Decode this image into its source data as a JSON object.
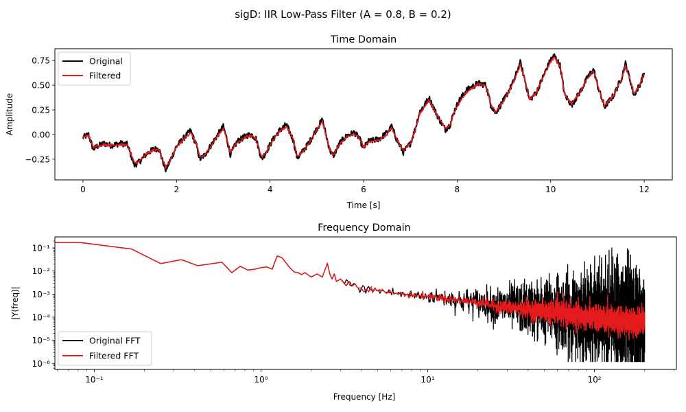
{
  "figure": {
    "suptitle": "sigD: IIR Low-Pass Filter (A = 0.8, B = 0.2)"
  },
  "chart_data": [
    {
      "type": "line",
      "title": "Time Domain",
      "xlabel": "Time [s]",
      "ylabel": "Amplitude",
      "xlim": [
        -0.6,
        12.6
      ],
      "ylim": [
        -0.46,
        0.87
      ],
      "xticks": [
        0,
        2,
        4,
        6,
        8,
        10,
        12
      ],
      "xtick_labels": [
        "0",
        "2",
        "4",
        "6",
        "8",
        "10",
        "12"
      ],
      "yticks": [
        -0.25,
        0.0,
        0.25,
        0.5,
        0.75
      ],
      "ytick_labels": [
        "−0.25",
        "0.00",
        "0.25",
        "0.50",
        "0.75"
      ],
      "legend_position": "upper-left",
      "series": [
        {
          "name": "Original",
          "color": "#000000",
          "envelope": 0.03,
          "x": [
            0,
            0.12,
            0.22,
            0.3,
            0.45,
            0.6,
            0.8,
            0.95,
            1.02,
            1.1,
            1.2,
            1.35,
            1.5,
            1.62,
            1.7,
            1.77,
            1.85,
            2.0,
            2.15,
            2.3,
            2.42,
            2.5,
            2.6,
            2.75,
            2.9,
            3.0,
            3.08,
            3.15,
            3.3,
            3.5,
            3.6,
            3.7,
            3.82,
            3.9,
            4.05,
            4.2,
            4.35,
            4.5,
            4.58,
            4.7,
            4.85,
            5.0,
            5.12,
            5.2,
            5.28,
            5.35,
            5.5,
            5.65,
            5.8,
            5.9,
            6.0,
            6.1,
            6.2,
            6.35,
            6.5,
            6.6,
            6.7,
            6.85,
            7.0,
            7.1,
            7.2,
            7.4,
            7.6,
            7.75,
            7.85,
            7.95,
            8.05,
            8.2,
            8.45,
            8.62,
            8.72,
            8.82,
            9.0,
            9.2,
            9.35,
            9.45,
            9.55,
            9.7,
            9.85,
            10.0,
            10.08,
            10.2,
            10.3,
            10.45,
            10.65,
            10.8,
            10.92,
            11.0,
            11.15,
            11.35,
            11.52,
            11.6,
            11.7,
            11.78,
            11.9,
            12.0
          ],
          "y": [
            -0.03,
            0.0,
            -0.15,
            -0.12,
            -0.09,
            -0.11,
            -0.09,
            -0.1,
            -0.2,
            -0.31,
            -0.28,
            -0.2,
            -0.15,
            -0.14,
            -0.26,
            -0.36,
            -0.28,
            -0.12,
            -0.04,
            0.04,
            -0.1,
            -0.25,
            -0.21,
            -0.1,
            0.01,
            0.08,
            -0.05,
            -0.2,
            -0.07,
            -0.01,
            -0.0,
            -0.04,
            -0.25,
            -0.19,
            -0.06,
            0.04,
            0.1,
            -0.06,
            -0.24,
            -0.17,
            -0.07,
            0.06,
            0.15,
            -0.01,
            -0.16,
            -0.22,
            -0.08,
            -0.01,
            0.02,
            -0.03,
            -0.14,
            -0.07,
            -0.06,
            -0.04,
            0.02,
            0.08,
            -0.04,
            -0.18,
            -0.09,
            0.05,
            0.23,
            0.37,
            0.17,
            0.05,
            0.1,
            0.25,
            0.35,
            0.45,
            0.52,
            0.5,
            0.3,
            0.22,
            0.35,
            0.53,
            0.73,
            0.55,
            0.35,
            0.43,
            0.6,
            0.76,
            0.8,
            0.7,
            0.4,
            0.3,
            0.45,
            0.59,
            0.66,
            0.5,
            0.28,
            0.4,
            0.58,
            0.72,
            0.55,
            0.4,
            0.5,
            0.62
          ],
          "line_width": 2.2
        },
        {
          "name": "Filtered",
          "color": "#e41a1c",
          "envelope": 0.012,
          "x": [
            0,
            0.12,
            0.22,
            0.3,
            0.45,
            0.6,
            0.8,
            0.95,
            1.02,
            1.1,
            1.2,
            1.35,
            1.5,
            1.62,
            1.7,
            1.77,
            1.85,
            2.0,
            2.15,
            2.3,
            2.42,
            2.5,
            2.6,
            2.75,
            2.9,
            3.0,
            3.08,
            3.15,
            3.3,
            3.5,
            3.6,
            3.7,
            3.82,
            3.9,
            4.05,
            4.2,
            4.35,
            4.5,
            4.58,
            4.7,
            4.85,
            5.0,
            5.12,
            5.2,
            5.28,
            5.35,
            5.5,
            5.65,
            5.8,
            5.9,
            6.0,
            6.1,
            6.2,
            6.35,
            6.5,
            6.6,
            6.7,
            6.85,
            7.0,
            7.1,
            7.2,
            7.4,
            7.6,
            7.75,
            7.85,
            7.95,
            8.05,
            8.2,
            8.45,
            8.62,
            8.72,
            8.82,
            9.0,
            9.2,
            9.35,
            9.45,
            9.55,
            9.7,
            9.85,
            10.0,
            10.08,
            10.2,
            10.3,
            10.45,
            10.65,
            10.8,
            10.92,
            11.0,
            11.15,
            11.35,
            11.52,
            11.6,
            11.7,
            11.78,
            11.9,
            12.0
          ],
          "y": [
            -0.03,
            -0.01,
            -0.13,
            -0.12,
            -0.1,
            -0.11,
            -0.1,
            -0.11,
            -0.19,
            -0.29,
            -0.27,
            -0.2,
            -0.16,
            -0.15,
            -0.25,
            -0.34,
            -0.28,
            -0.13,
            -0.05,
            0.02,
            -0.09,
            -0.23,
            -0.21,
            -0.11,
            0.0,
            0.06,
            -0.05,
            -0.18,
            -0.08,
            -0.02,
            -0.01,
            -0.04,
            -0.23,
            -0.19,
            -0.07,
            0.03,
            0.08,
            -0.05,
            -0.22,
            -0.17,
            -0.08,
            0.05,
            0.13,
            -0.01,
            -0.15,
            -0.21,
            -0.09,
            -0.02,
            0.01,
            -0.03,
            -0.13,
            -0.08,
            -0.07,
            -0.05,
            0.0,
            0.07,
            -0.04,
            -0.16,
            -0.09,
            0.04,
            0.21,
            0.35,
            0.17,
            0.06,
            0.1,
            0.24,
            0.33,
            0.43,
            0.51,
            0.49,
            0.31,
            0.23,
            0.34,
            0.52,
            0.71,
            0.55,
            0.36,
            0.43,
            0.59,
            0.74,
            0.78,
            0.69,
            0.41,
            0.31,
            0.45,
            0.58,
            0.64,
            0.5,
            0.29,
            0.4,
            0.57,
            0.7,
            0.55,
            0.41,
            0.5,
            0.61
          ],
          "line_width": 1.6
        }
      ]
    },
    {
      "type": "line",
      "title": "Frequency Domain",
      "xlabel": "Frequency [Hz]",
      "ylabel": "|Y(freq)|",
      "xscale": "log",
      "yscale": "log",
      "xlim": [
        0.058,
        310
      ],
      "ylim": [
        5.5e-07,
        0.3
      ],
      "xticks": [
        0.1,
        1,
        10,
        100
      ],
      "xtick_labels": [
        "10⁻¹",
        "10⁰",
        "10¹",
        "10²"
      ],
      "yticks": [
        1e-06,
        1e-05,
        0.0001,
        0.001,
        0.01,
        0.1
      ],
      "ytick_labels": [
        "10⁻⁶",
        "10⁻⁵",
        "10⁻⁴",
        "10⁻³",
        "10⁻²",
        "10⁻¹"
      ],
      "legend_position": "lower-left",
      "series": [
        {
          "name": "Original FFT",
          "color": "#000000",
          "x": [
            0.05,
            0.083,
            0.167,
            0.25,
            0.333,
            0.417,
            0.583,
            0.667,
            0.75,
            0.833,
            0.917,
            1.0,
            1.083,
            1.167,
            1.25,
            1.333,
            1.417,
            1.5,
            1.583,
            1.667,
            1.75,
            1.833,
            2.0,
            2.167,
            2.333,
            2.5,
            2.583,
            2.667,
            2.75,
            2.833,
            3.0,
            3.167,
            3.333,
            3.5,
            3.667,
            3.833,
            4.0,
            4.5,
            5.0,
            5.5,
            6.0,
            6.5,
            7.0,
            7.5,
            8.0,
            9.0,
            10.0,
            11.0,
            12.0,
            13.0,
            14.0,
            15.0,
            17.0,
            20.0,
            23.0,
            23.5,
            25.0,
            28.0,
            32.0,
            36.0,
            40.0,
            45.0,
            50.0,
            55.0,
            59.9,
            60.0,
            60.1,
            65.0,
            70.0,
            80.0,
            90.0,
            100.0,
            110.0,
            119.9,
            120.0,
            120.1,
            130.0,
            140.0,
            150.0,
            160.0,
            170.0,
            180.0,
            190.0,
            200.0
          ],
          "y": [
            0.17,
            0.17,
            0.09,
            0.021,
            0.031,
            0.017,
            0.024,
            0.0085,
            0.016,
            0.011,
            0.012,
            0.014,
            0.015,
            0.012,
            0.045,
            0.038,
            0.022,
            0.013,
            0.009,
            0.0085,
            0.007,
            0.0085,
            0.0055,
            0.0075,
            0.0055,
            0.022,
            0.0075,
            0.0045,
            0.0075,
            0.0035,
            0.0045,
            0.0028,
            0.0035,
            0.0022,
            0.0028,
            0.0018,
            0.0018,
            0.0016,
            0.0014,
            0.0013,
            0.0012,
            0.0011,
            0.001,
            0.00095,
            0.0009,
            0.00085,
            0.0008,
            0.00075,
            0.0007,
            0.00065,
            0.0006,
            0.00055,
            0.0005,
            0.00045,
            0.0004,
            0.00035,
            0.00033,
            0.0003,
            0.00028,
            0.00026,
            0.00024,
            0.00022,
            0.0002,
            0.00019,
            0.00018,
            0.008,
            0.00018,
            0.00016,
            0.00015,
            0.00013,
            0.00012,
            0.00011,
            0.0001,
            0.0001,
            0.012,
            0.0001,
            9e-05,
            8.5e-05,
            8e-05,
            7.5e-05,
            7e-05,
            6.5e-05,
            6e-05,
            6e-05
          ],
          "noise_sigma": [
            0,
            0,
            0,
            0,
            0,
            0,
            0,
            0,
            0,
            0,
            0,
            0,
            0,
            0,
            0,
            0,
            0,
            0,
            0,
            0,
            0,
            0,
            0,
            0,
            0,
            0,
            0,
            0,
            0,
            0,
            0.06,
            0.08,
            0.1,
            0.1,
            0.12,
            0.12,
            0.12,
            0.12,
            0.12,
            0.12,
            0.12,
            0.12,
            0.12,
            0.12,
            0.12,
            0.14,
            0.16,
            0.18,
            0.2,
            0.22,
            0.25,
            0.28,
            0.3,
            0.34,
            0.38,
            0.4,
            0.45,
            0.5,
            0.55,
            0.6,
            0.65,
            0.7,
            0.75,
            0.8,
            0.8,
            0,
            0.8,
            0.85,
            0.9,
            0.95,
            1.0,
            1.05,
            1.1,
            1.1,
            0,
            1.1,
            1.15,
            1.2,
            1.2,
            1.2,
            1.2,
            1.2,
            1.2,
            1.2
          ],
          "line_width": 1.3
        },
        {
          "name": "Filtered FFT",
          "color": "#e41a1c",
          "x": [
            0.05,
            0.083,
            0.167,
            0.25,
            0.333,
            0.417,
            0.583,
            0.667,
            0.75,
            0.833,
            0.917,
            1.0,
            1.083,
            1.167,
            1.25,
            1.333,
            1.417,
            1.5,
            1.583,
            1.667,
            1.75,
            1.833,
            2.0,
            2.167,
            2.333,
            2.5,
            2.583,
            2.667,
            2.75,
            2.833,
            3.0,
            3.167,
            3.333,
            3.5,
            3.667,
            3.833,
            4.0,
            4.5,
            5.0,
            5.5,
            6.0,
            6.5,
            7.0,
            7.5,
            8.0,
            9.0,
            10.0,
            11.0,
            12.0,
            13.0,
            14.0,
            15.0,
            17.0,
            20.0,
            23.0,
            23.5,
            25.0,
            28.0,
            32.0,
            36.0,
            40.0,
            45.0,
            50.0,
            55.0,
            59.9,
            60.0,
            60.1,
            65.0,
            70.0,
            80.0,
            90.0,
            100.0,
            110.0,
            119.9,
            120.0,
            120.1,
            130.0,
            140.0,
            150.0,
            160.0,
            170.0,
            180.0,
            190.0,
            200.0
          ],
          "y": [
            0.17,
            0.17,
            0.09,
            0.021,
            0.031,
            0.017,
            0.024,
            0.0085,
            0.016,
            0.011,
            0.012,
            0.014,
            0.015,
            0.012,
            0.045,
            0.038,
            0.022,
            0.013,
            0.009,
            0.0085,
            0.007,
            0.0085,
            0.0055,
            0.0075,
            0.0055,
            0.022,
            0.0075,
            0.0045,
            0.0075,
            0.0035,
            0.0045,
            0.0028,
            0.0035,
            0.0022,
            0.0028,
            0.0018,
            0.0018,
            0.0016,
            0.0014,
            0.0013,
            0.0012,
            0.0011,
            0.001,
            0.00095,
            0.0009,
            0.00085,
            0.0008,
            0.00075,
            0.0007,
            0.00065,
            0.0006,
            0.00055,
            0.0005,
            0.00045,
            0.0004,
            0.00035,
            0.00032,
            0.00028,
            0.00026,
            0.00024,
            0.00022,
            0.0002,
            0.00018,
            0.00017,
            0.00016,
            0.0012,
            0.00016,
            0.00014,
            0.00013,
            0.00011,
            0.0001,
            9e-05,
            8.5e-05,
            8e-05,
            0.0009,
            8e-05,
            7.5e-05,
            7e-05,
            6.8e-05,
            6.5e-05,
            6.3e-05,
            6e-05,
            6e-05,
            6e-05
          ],
          "noise_sigma": [
            0,
            0,
            0,
            0,
            0,
            0,
            0,
            0,
            0,
            0,
            0,
            0,
            0,
            0,
            0,
            0,
            0,
            0,
            0,
            0,
            0,
            0,
            0,
            0,
            0,
            0,
            0,
            0,
            0,
            0,
            0.05,
            0.06,
            0.06,
            0.07,
            0.07,
            0.07,
            0.07,
            0.07,
            0.07,
            0.07,
            0.07,
            0.07,
            0.07,
            0.07,
            0.07,
            0.08,
            0.08,
            0.09,
            0.09,
            0.1,
            0.1,
            0.1,
            0.1,
            0.11,
            0.12,
            0.12,
            0.14,
            0.16,
            0.18,
            0.2,
            0.22,
            0.24,
            0.26,
            0.28,
            0.28,
            0,
            0.28,
            0.28,
            0.28,
            0.28,
            0.28,
            0.28,
            0.28,
            0.28,
            0,
            0.28,
            0.28,
            0.28,
            0.28,
            0.28,
            0.28,
            0.28,
            0.28,
            0.28
          ],
          "line_width": 1.5
        }
      ]
    }
  ]
}
